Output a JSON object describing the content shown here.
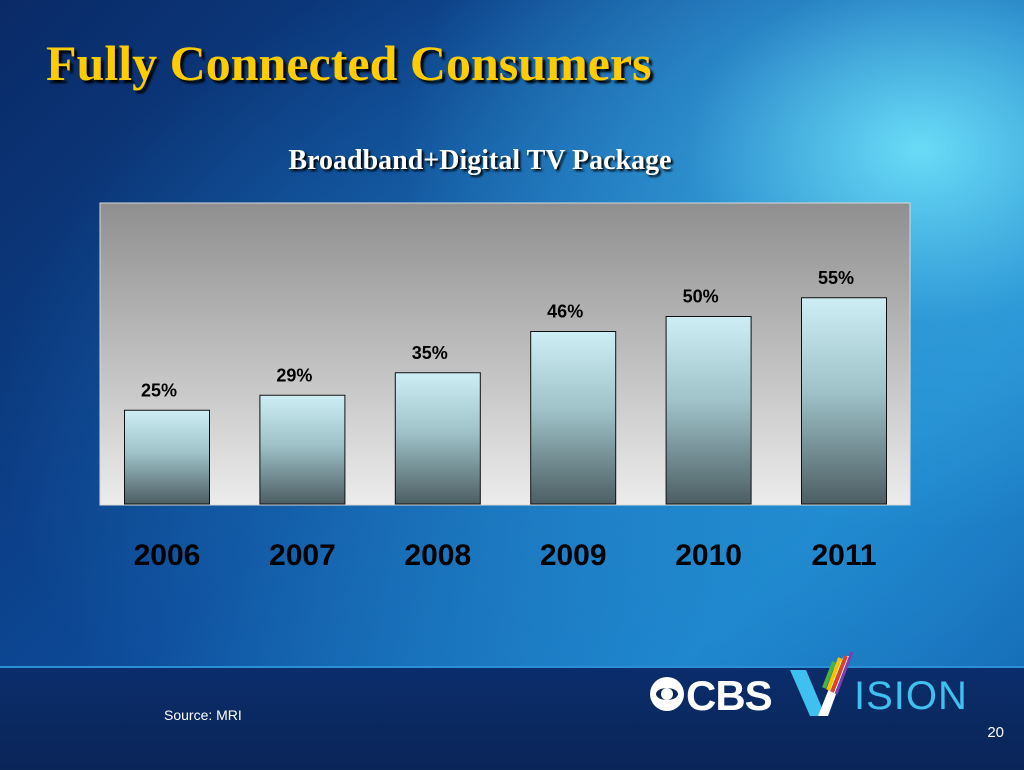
{
  "slide": {
    "title": "Fully Connected Consumers",
    "source": "Source:  MRI",
    "page_number": "20",
    "logo": {
      "brand": "CBS",
      "vision": "VISION",
      "vision_rest": "ISION"
    }
  },
  "chart_data": {
    "type": "bar",
    "title": "Broadband+Digital TV Package",
    "categories": [
      "2006",
      "2007",
      "2008",
      "2009",
      "2010",
      "2011"
    ],
    "values": [
      25,
      29,
      35,
      46,
      50,
      55
    ],
    "value_labels": [
      "25%",
      "29%",
      "35%",
      "46%",
      "50%",
      "55%"
    ],
    "ylim": [
      0,
      80
    ],
    "grid": false,
    "legend": "none",
    "colors": {
      "bar_top": "#cdeef5",
      "bar_bottom": "#4c5e63",
      "plot_top": "#8f8f8f",
      "plot_bottom": "#e9e9e9",
      "title": "#ffcc00"
    }
  }
}
